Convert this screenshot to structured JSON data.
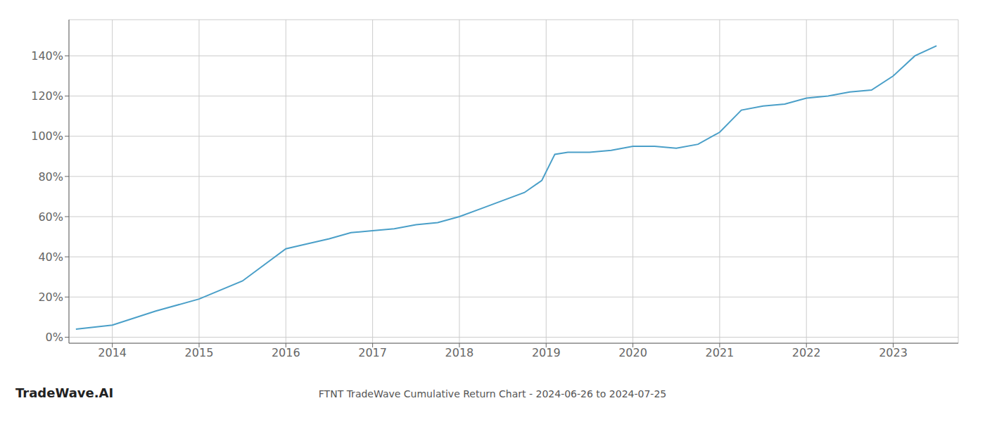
{
  "chart_data": {
    "type": "line",
    "title": "FTNT TradeWave Cumulative Return Chart - 2024-06-26 to 2024-07-25",
    "annotations": [
      "TradeWave.AI"
    ],
    "x": [
      2013.58,
      2014.0,
      2014.5,
      2015.0,
      2015.5,
      2016.0,
      2016.2,
      2016.5,
      2016.75,
      2017.0,
      2017.25,
      2017.5,
      2017.75,
      2018.0,
      2018.25,
      2018.5,
      2018.75,
      2018.95,
      2019.1,
      2019.25,
      2019.5,
      2019.75,
      2020.0,
      2020.25,
      2020.5,
      2020.75,
      2021.0,
      2021.25,
      2021.5,
      2021.75,
      2022.0,
      2022.25,
      2022.5,
      2022.75,
      2023.0,
      2023.25,
      2023.5
    ],
    "values": [
      0.04,
      0.06,
      0.13,
      0.19,
      0.28,
      0.44,
      0.46,
      0.49,
      0.52,
      0.53,
      0.54,
      0.56,
      0.57,
      0.6,
      0.64,
      0.68,
      0.72,
      0.78,
      0.91,
      0.92,
      0.92,
      0.93,
      0.95,
      0.95,
      0.94,
      0.96,
      1.02,
      1.13,
      1.15,
      1.16,
      1.19,
      1.2,
      1.22,
      1.23,
      1.3,
      1.4,
      1.45
    ],
    "color": "#4a9fc8",
    "xlim": [
      2013.5,
      2023.75
    ],
    "xticks": [
      2014,
      2015,
      2016,
      2017,
      2018,
      2019,
      2020,
      2021,
      2022,
      2023
    ],
    "ylim": [
      -0.03,
      1.58
    ],
    "yticks": [
      {
        "value": 0.0,
        "label": "0%"
      },
      {
        "value": 0.2,
        "label": "20%"
      },
      {
        "value": 0.4,
        "label": "40%"
      },
      {
        "value": 0.6,
        "label": "60%"
      },
      {
        "value": 0.8,
        "label": "80%"
      },
      {
        "value": 1.0,
        "label": "100%"
      },
      {
        "value": 1.2,
        "label": "120%"
      },
      {
        "value": 1.4,
        "label": "140%"
      }
    ],
    "grid": true
  }
}
